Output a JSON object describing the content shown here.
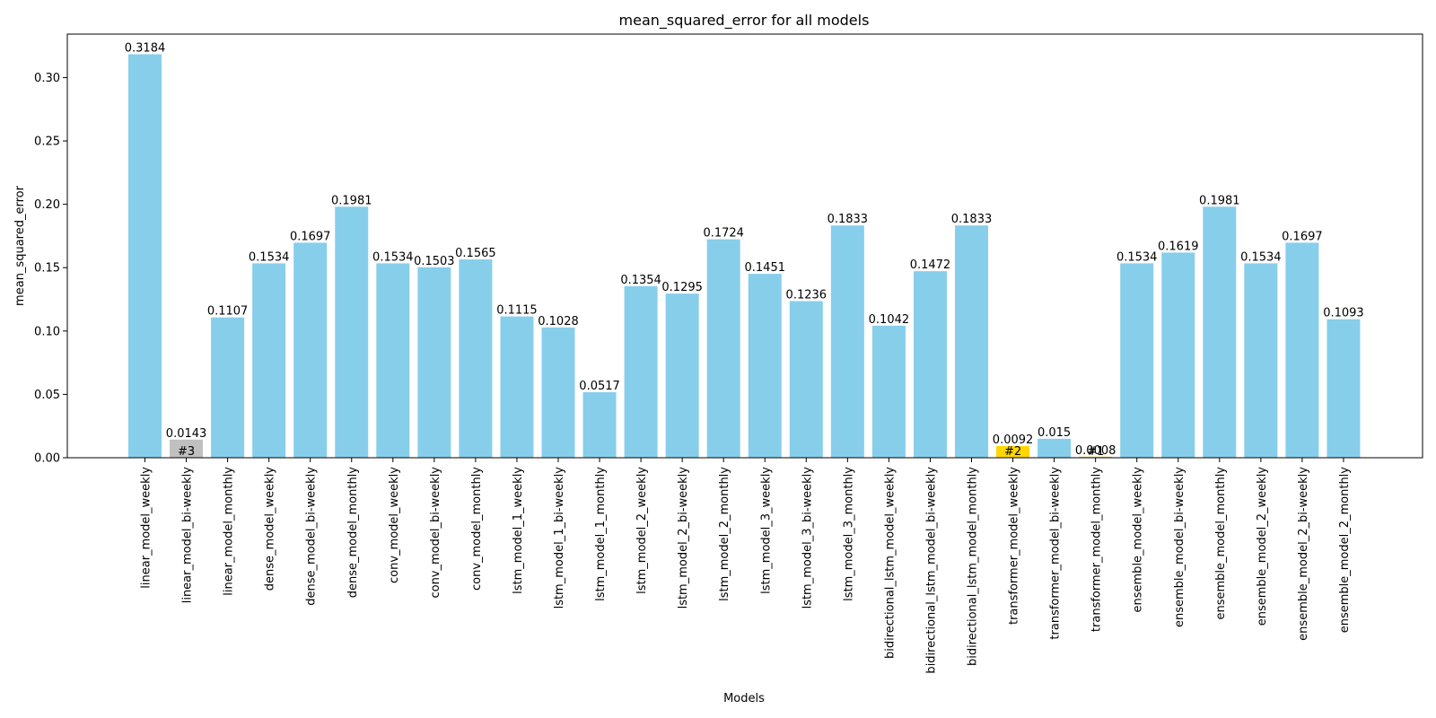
{
  "chart_data": {
    "type": "bar",
    "title": "mean_squared_error for all models",
    "xlabel": "Models",
    "ylabel": "mean_squared_error",
    "ylim": [
      0,
      0.3184
    ],
    "yticks": [
      "0.00",
      "0.05",
      "0.10",
      "0.15",
      "0.20",
      "0.25",
      "0.30"
    ],
    "ytick_values": [
      0,
      0.05,
      0.1,
      0.15,
      0.2,
      0.25,
      0.3
    ],
    "grid": false,
    "colors": {
      "default": "#87CEEB",
      "rank_1": "#FFD700",
      "rank_2": "#FFD700",
      "rank_3": "#C0C0C0"
    },
    "categories": [
      "linear_model_weekly",
      "linear_model_bi-weekly",
      "linear_model_monthly",
      "dense_model_weekly",
      "dense_model_bi-weekly",
      "dense_model_monthly",
      "conv_model_weekly",
      "conv_model_bi-weekly",
      "conv_model_monthly",
      "lstm_model_1_weekly",
      "lstm_model_1_bi-weekly",
      "lstm_model_1_monthly",
      "lstm_model_2_weekly",
      "lstm_model_2_bi-weekly",
      "lstm_model_2_monthly",
      "lstm_model_3_weekly",
      "lstm_model_3_bi-weekly",
      "lstm_model_3_monthly",
      "bidirectional_lstm_model_weekly",
      "bidirectional_lstm_model_bi-weekly",
      "bidirectional_lstm_model_monthly",
      "transformer_model_weekly",
      "transformer_model_bi-weekly",
      "transformer_model_monthly",
      "ensemble_model_weekly",
      "ensemble_model_bi-weekly",
      "ensemble_model_monthly",
      "ensemble_model_2_weekly",
      "ensemble_model_2_bi-weekly",
      "ensemble_model_2_monthly"
    ],
    "values": [
      0.3184,
      0.0143,
      0.1107,
      0.1534,
      0.1697,
      0.1981,
      0.1534,
      0.1503,
      0.1565,
      0.1115,
      0.1028,
      0.0517,
      0.1354,
      0.1295,
      0.1724,
      0.1451,
      0.1236,
      0.1833,
      0.1042,
      0.1472,
      0.1833,
      0.0092,
      0.015,
      0.0008,
      0.1534,
      0.1619,
      0.1981,
      0.1534,
      0.1697,
      0.1093
    ],
    "value_labels": [
      "0.3184",
      "0.0143",
      "0.1107",
      "0.1534",
      "0.1697",
      "0.1981",
      "0.1534",
      "0.1503",
      "0.1565",
      "0.1115",
      "0.1028",
      "0.0517",
      "0.1354",
      "0.1295",
      "0.1724",
      "0.1451",
      "0.1236",
      "0.1833",
      "0.1042",
      "0.1472",
      "0.1833",
      "0.0092",
      "0.015",
      "0.0008",
      "0.1534",
      "0.1619",
      "0.1981",
      "0.1534",
      "0.1697",
      "0.1093"
    ],
    "rank_annotations": [
      {
        "index": 23,
        "label": "#1",
        "color": "#FFD700"
      },
      {
        "index": 21,
        "label": "#2",
        "color": "#FFD700"
      },
      {
        "index": 1,
        "label": "#3",
        "color": "#C0C0C0"
      }
    ]
  }
}
